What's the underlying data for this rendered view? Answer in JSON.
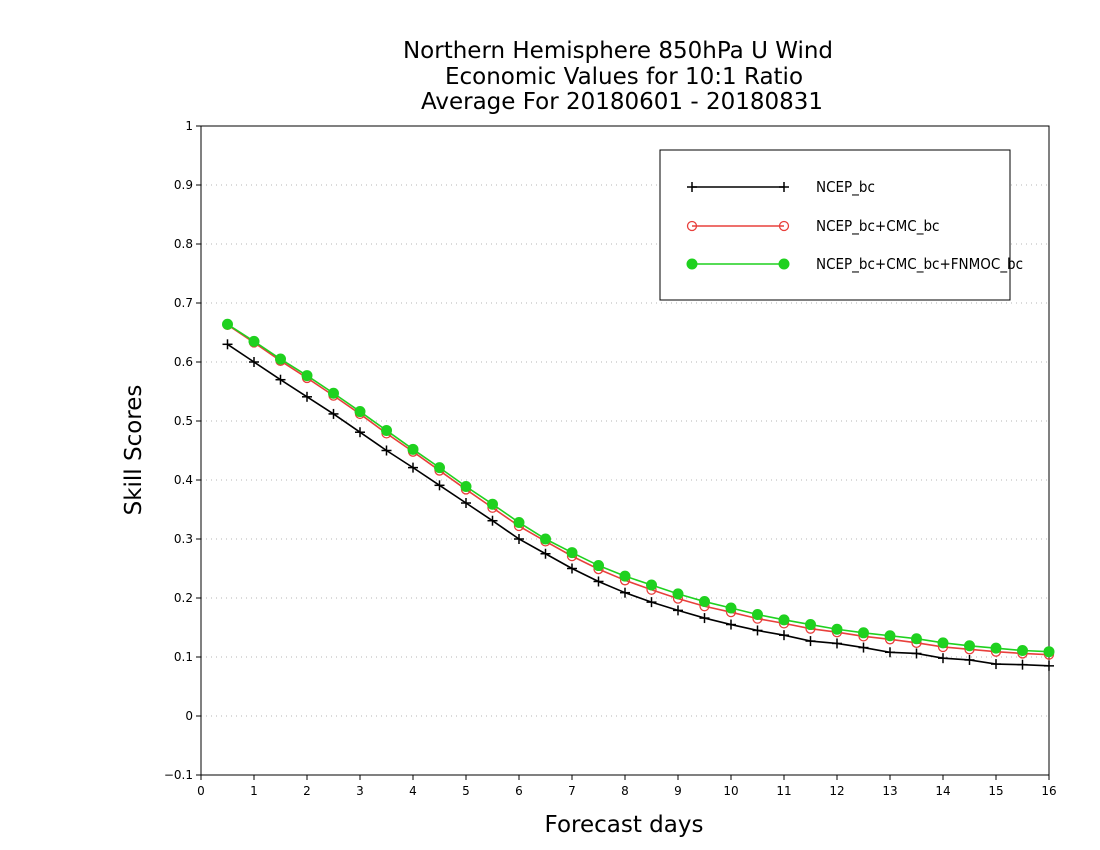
{
  "chart_data": {
    "type": "line",
    "title": [
      "Northern Hemisphere 850hPa U Wind",
      "Economic Values for 10:1 Ratio",
      "Average For 20180601 - 20180831"
    ],
    "xlabel": "Forecast days",
    "ylabel": "Skill Scores",
    "xlim": [
      0,
      16
    ],
    "ylim": [
      -0.1,
      1
    ],
    "xticks": [
      "0",
      "1",
      "2",
      "3",
      "4",
      "5",
      "6",
      "7",
      "8",
      "9",
      "10",
      "11",
      "12",
      "13",
      "14",
      "15",
      "16"
    ],
    "yticks": [
      "-0.1",
      "0",
      "0.1",
      "0.2",
      "0.3",
      "0.4",
      "0.5",
      "0.6",
      "0.7",
      "0.8",
      "0.9",
      "1"
    ],
    "grid": "dotted horizontal",
    "legend_position": "top-right",
    "x": [
      0.5,
      1,
      1.5,
      2,
      2.5,
      3,
      3.5,
      4,
      4.5,
      5,
      5.5,
      6,
      6.5,
      7,
      7.5,
      8,
      8.5,
      9,
      9.5,
      10,
      10.5,
      11,
      11.5,
      12,
      12.5,
      13,
      13.5,
      14,
      14.5,
      15,
      15.5,
      16
    ],
    "series": [
      {
        "name": "NCEP_bc",
        "color": "#000000",
        "marker": "plus",
        "values": [
          0.63,
          0.6,
          0.57,
          0.541,
          0.512,
          0.481,
          0.45,
          0.421,
          0.391,
          0.361,
          0.331,
          0.3,
          0.275,
          0.25,
          0.228,
          0.209,
          0.193,
          0.179,
          0.166,
          0.155,
          0.145,
          0.137,
          0.127,
          0.123,
          0.116,
          0.108,
          0.106,
          0.098,
          0.095,
          0.088,
          0.087,
          0.085
        ]
      },
      {
        "name": "NCEP_bc+CMC_bc",
        "color": "#e8403c",
        "marker": "open-circle",
        "values": [
          0.663,
          0.633,
          0.602,
          0.573,
          0.543,
          0.512,
          0.479,
          0.448,
          0.416,
          0.384,
          0.353,
          0.322,
          0.296,
          0.271,
          0.249,
          0.23,
          0.214,
          0.199,
          0.186,
          0.176,
          0.165,
          0.157,
          0.148,
          0.142,
          0.135,
          0.13,
          0.124,
          0.117,
          0.113,
          0.109,
          0.106,
          0.104
        ]
      },
      {
        "name": "NCEP_bc+CMC_bc+FNMOC_bc",
        "color": "#1fd11f",
        "marker": "filled-circle",
        "values": [
          0.664,
          0.635,
          0.605,
          0.577,
          0.547,
          0.516,
          0.484,
          0.452,
          0.421,
          0.389,
          0.359,
          0.328,
          0.3,
          0.277,
          0.255,
          0.237,
          0.222,
          0.207,
          0.194,
          0.183,
          0.172,
          0.163,
          0.155,
          0.147,
          0.141,
          0.136,
          0.131,
          0.124,
          0.119,
          0.115,
          0.111,
          0.109
        ]
      }
    ]
  }
}
